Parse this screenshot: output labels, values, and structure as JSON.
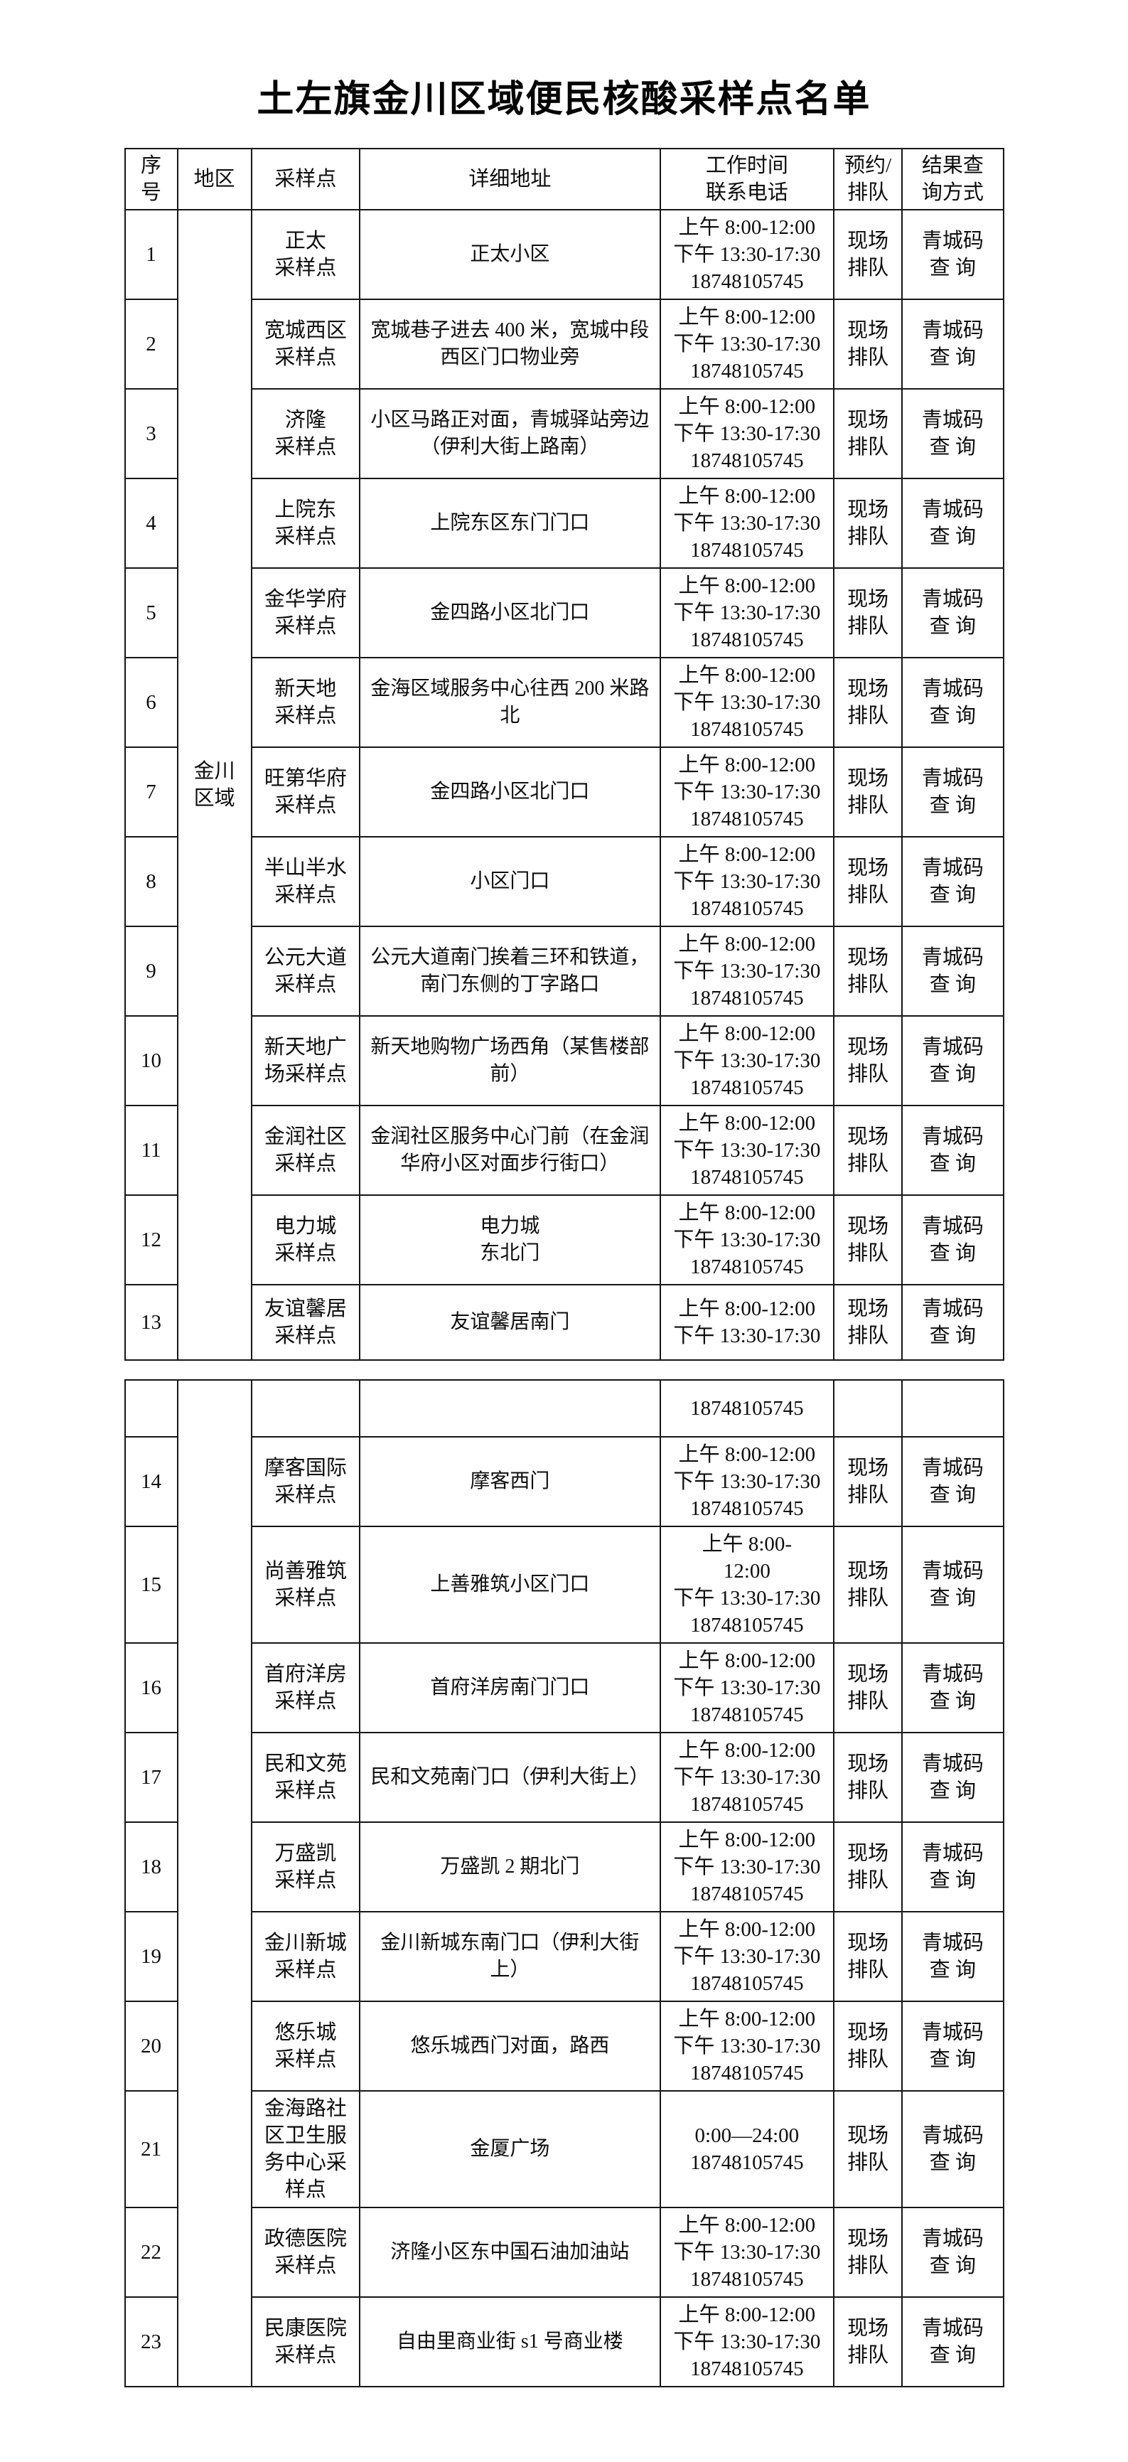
{
  "page": {
    "title": "土左旗金川区域便民核酸采样点名单"
  },
  "table": {
    "headers": [
      "序\n号",
      "地区",
      "采样点",
      "详细地址",
      "工作时间\n联系电话",
      "预约/\n排队",
      "结果查\n询方式"
    ],
    "region_label": "金川\n区域",
    "region2_label": "",
    "section1": [
      {
        "no": "1",
        "site": "正太\n采样点",
        "address": "正太小区",
        "time": "上午 8:00-12:00\n下午 13:30-17:30\n18748105745",
        "queue": "现场\n排队",
        "result": "青城码\n查 询"
      },
      {
        "no": "2",
        "site": "宽城西区\n采样点",
        "address": "宽城巷子进去 400 米，宽城中段\n西区门口物业旁",
        "time": "上午 8:00-12:00\n下午 13:30-17:30\n18748105745",
        "queue": "现场\n排队",
        "result": "青城码\n查 询"
      },
      {
        "no": "3",
        "site": "济隆\n采样点",
        "address": "小区马路正对面，青城驿站旁边\n（伊利大街上路南）",
        "time": "上午 8:00-12:00\n下午 13:30-17:30\n18748105745",
        "queue": "现场\n排队",
        "result": "青城码\n查 询"
      },
      {
        "no": "4",
        "site": "上院东\n采样点",
        "address": "上院东区东门门口",
        "time": "上午 8:00-12:00\n下午 13:30-17:30\n18748105745",
        "queue": "现场\n排队",
        "result": "青城码\n查 询"
      },
      {
        "no": "5",
        "site": "金华学府\n采样点",
        "address": "金四路小区北门口",
        "time": "上午 8:00-12:00\n下午 13:30-17:30\n18748105745",
        "queue": "现场\n排队",
        "result": "青城码\n查 询"
      },
      {
        "no": "6",
        "site": "新天地\n采样点",
        "address": "金海区域服务中心往西 200 米路\n北",
        "time": "上午 8:00-12:00\n下午 13:30-17:30\n18748105745",
        "queue": "现场\n排队",
        "result": "青城码\n查 询"
      },
      {
        "no": "7",
        "site": "旺第华府\n采样点",
        "address": "金四路小区北门口",
        "time": "上午 8:00-12:00\n下午 13:30-17:30\n18748105745",
        "queue": "现场\n排队",
        "result": "青城码\n查 询"
      },
      {
        "no": "8",
        "site": "半山半水\n采样点",
        "address": "小区门口",
        "time": "上午 8:00-12:00\n下午 13:30-17:30\n18748105745",
        "queue": "现场\n排队",
        "result": "青城码\n查 询"
      },
      {
        "no": "9",
        "site": "公元大道\n采样点",
        "address": "公元大道南门挨着三环和铁道，\n南门东侧的丁字路口",
        "time": "上午 8:00-12:00\n下午 13:30-17:30\n18748105745",
        "queue": "现场\n排队",
        "result": "青城码\n查 询"
      },
      {
        "no": "10",
        "site": "新天地广\n场采样点",
        "address": "新天地购物广场西角（某售楼部\n前）",
        "time": "上午 8:00-12:00\n下午 13:30-17:30\n18748105745",
        "queue": "现场\n排队",
        "result": "青城码\n查 询"
      },
      {
        "no": "11",
        "site": "金润社区\n采样点",
        "address": "金润社区服务中心门前（在金润\n华府小区对面步行街口）",
        "time": "上午 8:00-12:00\n下午 13:30-17:30\n18748105745",
        "queue": "现场\n排队",
        "result": "青城码\n查 询"
      },
      {
        "no": "12",
        "site": "电力城\n采样点",
        "address": "电力城\n东北门",
        "time": "上午 8:00-12:00\n下午 13:30-17:30\n18748105745",
        "queue": "现场\n排队",
        "result": "青城码\n查 询"
      },
      {
        "no": "13",
        "site": "友谊馨居\n采样点",
        "address": "友谊馨居南门",
        "time": "上午 8:00-12:00\n下午 13:30-17:30",
        "queue": "现场\n排队",
        "result": "青城码\n查 询"
      }
    ],
    "section2": [
      {
        "no": "",
        "site": "",
        "address": "",
        "time": "18748105745",
        "queue": "",
        "result": ""
      },
      {
        "no": "14",
        "site": "摩客国际\n采样点",
        "address": "摩客西门",
        "time": "上午 8:00-12:00\n下午 13:30-17:30\n18748105745",
        "queue": "现场\n排队",
        "result": "青城码\n查 询"
      },
      {
        "no": "15",
        "site": "尚善雅筑\n采样点",
        "address": "上善雅筑小区门口",
        "time": "上午 8:00-\n12:00\n下午 13:30-17:30\n18748105745",
        "queue": "现场\n排队",
        "result": "青城码\n查 询"
      },
      {
        "no": "16",
        "site": "首府洋房\n采样点",
        "address": "首府洋房南门门口",
        "time": "上午 8:00-12:00\n下午 13:30-17:30\n18748105745",
        "queue": "现场\n排队",
        "result": "青城码\n查 询"
      },
      {
        "no": "17",
        "site": "民和文苑\n采样点",
        "address": "民和文苑南门口（伊利大街上）",
        "time": "上午 8:00-12:00\n下午 13:30-17:30\n18748105745",
        "queue": "现场\n排队",
        "result": "青城码\n查 询"
      },
      {
        "no": "18",
        "site": "万盛凯\n采样点",
        "address": "万盛凯 2 期北门",
        "time": "上午 8:00-12:00\n下午 13:30-17:30\n18748105745",
        "queue": "现场\n排队",
        "result": "青城码\n查 询"
      },
      {
        "no": "19",
        "site": "金川新城\n采样点",
        "address": "金川新城东南门口（伊利大街\n上）",
        "time": "上午 8:00-12:00\n下午 13:30-17:30\n18748105745",
        "queue": "现场\n排队",
        "result": "青城码\n查 询"
      },
      {
        "no": "20",
        "site": "悠乐城\n采样点",
        "address": "悠乐城西门对面，路西",
        "time": "上午 8:00-12:00\n下午 13:30-17:30\n18748105745",
        "queue": "现场\n排队",
        "result": "青城码\n查 询"
      },
      {
        "no": "21",
        "site": "金海路社\n区卫生服\n务中心采\n样点",
        "address": "金厦广场",
        "time": "0:00—24:00\n18748105745",
        "queue": "现场\n排队",
        "result": "青城码\n查 询"
      },
      {
        "no": "22",
        "site": "政德医院\n采样点",
        "address": "济隆小区东中国石油加油站",
        "time": "上午 8:00-12:00\n下午 13:30-17:30\n18748105745",
        "queue": "现场\n排队",
        "result": "青城码\n查 询"
      },
      {
        "no": "23",
        "site": "民康医院\n采样点",
        "address": "自由里商业街 s1 号商业楼",
        "time": "上午 8:00-12:00\n下午 13:30-17:30\n18748105745",
        "queue": "现场\n排队",
        "result": "青城码\n查 询"
      }
    ]
  }
}
